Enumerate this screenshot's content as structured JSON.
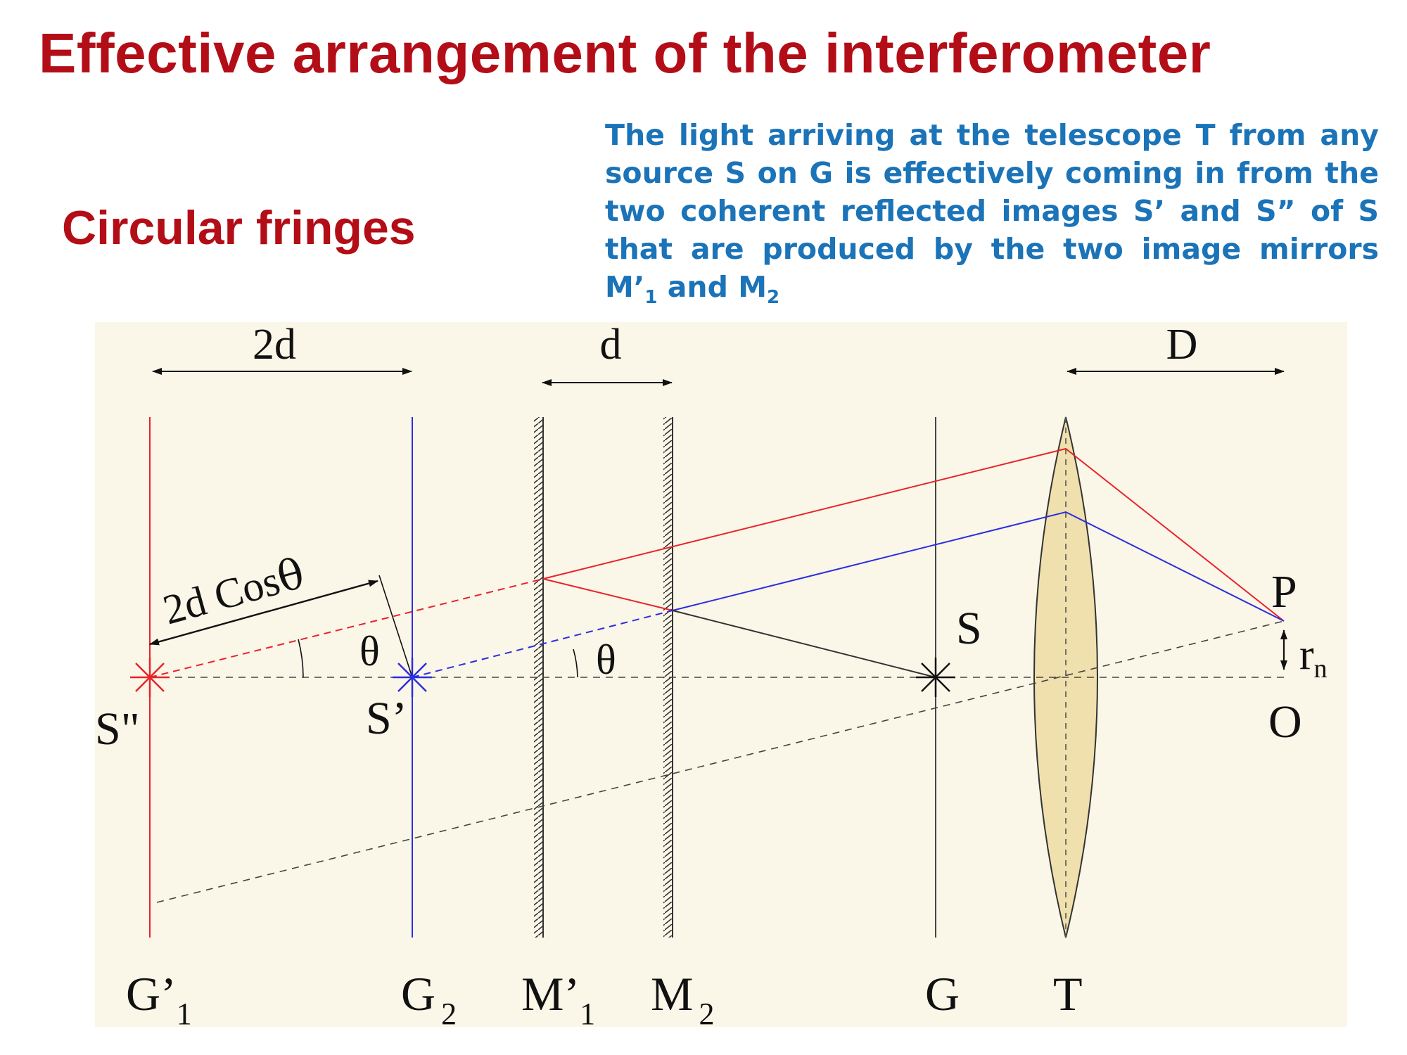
{
  "title": "Effective arrangement of the interferometer",
  "subtitle": "Circular fringes",
  "description": {
    "main": "The light arriving at the telescope T from any source S on G is effectively coming in from the two coherent reflected images S’ and S” of S that are produced by the two image mirrors M’",
    "sub1": "1",
    "mid": " and M",
    "sub2": "2"
  },
  "diagram": {
    "dimensions": {
      "two_d": "2d",
      "d": "d",
      "D": "D"
    },
    "path_label": {
      "text": "2d Cos",
      "theta": "θ"
    },
    "angle_label": "θ",
    "points": {
      "S2": "S\"",
      "S1": "S’",
      "S": "S",
      "P": "P",
      "O": "O",
      "r": "r",
      "r_sub": "n"
    },
    "bottom_labels": {
      "G1": "G’",
      "G1_sub": "1",
      "G2": "G",
      "G2_sub": "2",
      "M1": "M’",
      "M1_sub": "1",
      "M2": "M",
      "M2_sub": "2",
      "G": "G",
      "T": "T"
    },
    "colors": {
      "background": "#faf6e8",
      "red": "#e8232a",
      "blue": "#2d2de0",
      "lens": "#efe0ad"
    }
  }
}
